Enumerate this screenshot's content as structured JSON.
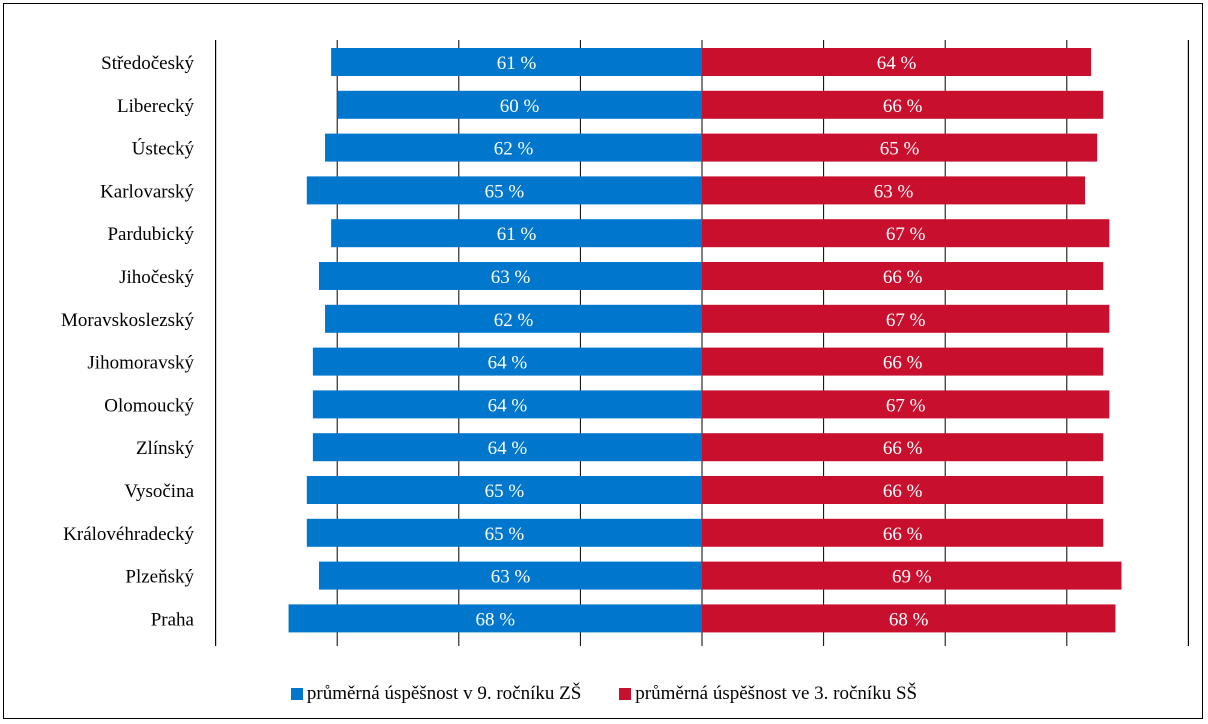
{
  "chart_data": {
    "type": "bar",
    "orientation": "horizontal-diverging",
    "categories": [
      "Středočeský",
      "Liberecký",
      "Ústecký",
      "Karlovarský",
      "Pardubický",
      "Jihočeský",
      "Moravskoslezský",
      "Jihomoravský",
      "Olomoucký",
      "Zlínský",
      "Vysočina",
      "Královéhradecký",
      "Plzeňský",
      "Praha"
    ],
    "series": [
      {
        "name": "průměrná úspěšnost v 9. ročníku ZŠ",
        "color": "#0077cc",
        "direction": "left",
        "values": [
          61,
          60,
          62,
          65,
          61,
          63,
          62,
          64,
          64,
          64,
          65,
          65,
          63,
          68
        ],
        "labels": [
          "61 %",
          "60 %",
          "62 %",
          "65 %",
          "61 %",
          "63 %",
          "62 %",
          "64 %",
          "64 %",
          "64 %",
          "65 %",
          "65 %",
          "63 %",
          "68 %"
        ]
      },
      {
        "name": "průměrná úspěšnost ve 3. ročníku SŠ",
        "color": "#c8102e",
        "direction": "right",
        "values": [
          64,
          66,
          65,
          63,
          67,
          66,
          67,
          66,
          67,
          66,
          66,
          66,
          69,
          68
        ],
        "labels": [
          "64 %",
          "66 %",
          "65 %",
          "63 %",
          "67 %",
          "66 %",
          "67 %",
          "66 %",
          "67 %",
          "66 %",
          "66 %",
          "66 %",
          "69 %",
          "68 %"
        ]
      }
    ],
    "xlim": [
      -80,
      80
    ],
    "gridlines_at": [
      -80,
      -60,
      -40,
      -20,
      0,
      20,
      40,
      60,
      80
    ],
    "grid": true,
    "legend_position": "bottom"
  }
}
